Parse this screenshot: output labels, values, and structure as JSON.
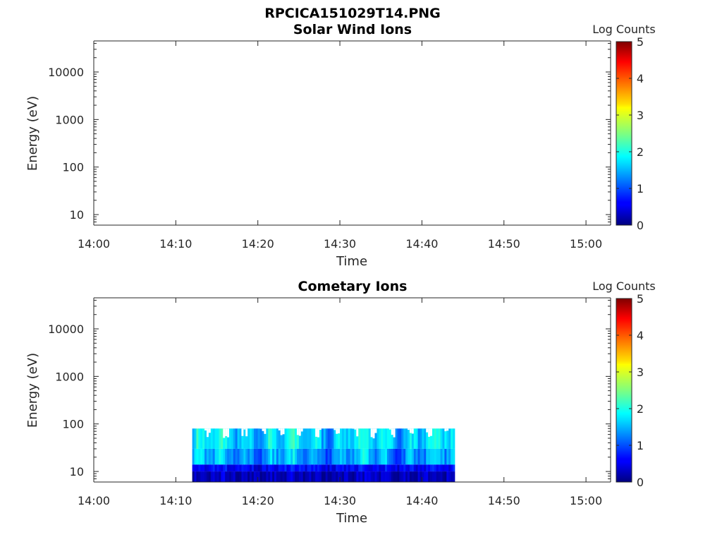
{
  "figure": {
    "title": "RPCICA151029T14.PNG"
  },
  "chart_data": [
    {
      "type": "heatmap",
      "title": "Solar Wind Ions",
      "xlabel": "Time",
      "ylabel": "Energy (eV)",
      "x_range": [
        "14:00",
        "15:03"
      ],
      "xticks": [
        "14:00",
        "14:10",
        "14:20",
        "14:30",
        "14:40",
        "14:50",
        "15:00"
      ],
      "y_scale": "log",
      "y_range": [
        6,
        45000
      ],
      "yticks": [
        "10",
        "100",
        "1000",
        "10000"
      ],
      "colorbar": {
        "label": "Log Counts",
        "range": [
          0,
          5
        ],
        "ticks": [
          "0",
          "1",
          "2",
          "3",
          "4",
          "5"
        ],
        "colormap": "jet"
      },
      "data": []
    },
    {
      "type": "heatmap",
      "title": "Cometary Ions",
      "xlabel": "Time",
      "ylabel": "Energy (eV)",
      "x_range": [
        "14:00",
        "15:03"
      ],
      "xticks": [
        "14:00",
        "14:10",
        "14:20",
        "14:30",
        "14:40",
        "14:50",
        "15:00"
      ],
      "y_scale": "log",
      "y_range": [
        6,
        45000
      ],
      "yticks": [
        "10",
        "100",
        "1000",
        "10000"
      ],
      "colorbar": {
        "label": "Log Counts",
        "range": [
          0,
          5
        ],
        "ticks": [
          "0",
          "1",
          "2",
          "3",
          "4",
          "5"
        ],
        "colormap": "jet"
      },
      "data": [
        {
          "time_start": "14:12",
          "time_end": "14:44",
          "energy_min": 6,
          "energy_max": 80,
          "log_counts_bands": [
            {
              "energy_range": [
                6,
                10
              ],
              "log_counts": 0.3
            },
            {
              "energy_range": [
                10,
                14
              ],
              "log_counts": 0.6
            },
            {
              "energy_range": [
                14,
                30
              ],
              "log_counts": 1.4
            },
            {
              "energy_range": [
                30,
                80
              ],
              "log_counts": 1.7
            }
          ]
        }
      ]
    }
  ]
}
